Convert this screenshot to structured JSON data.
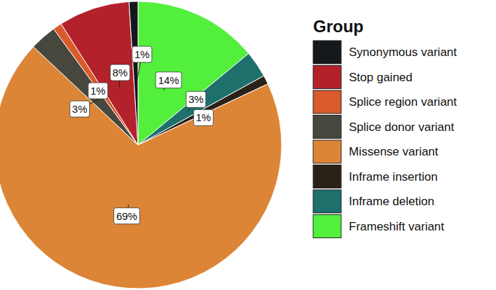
{
  "chart_data": {
    "type": "pie",
    "legend_title": "Group",
    "categories": [
      "Synonymous variant",
      "Stop gained",
      "Splice region variant",
      "Splice donor variant",
      "Missense variant",
      "Inframe insertion",
      "Inframe deletion",
      "Frameshift variant"
    ],
    "values": [
      1,
      8,
      1,
      3,
      69,
      1,
      3,
      14
    ],
    "value_labels": [
      "1%",
      "8%",
      "1%",
      "3%",
      "69%",
      "1%",
      "3%",
      "14%"
    ],
    "colors": [
      "#16191c",
      "#b3222b",
      "#d95a2b",
      "#48473e",
      "#dd8536",
      "#2a2218",
      "#1d706b",
      "#53ef3d"
    ],
    "data_labels": true,
    "legend": "right"
  }
}
